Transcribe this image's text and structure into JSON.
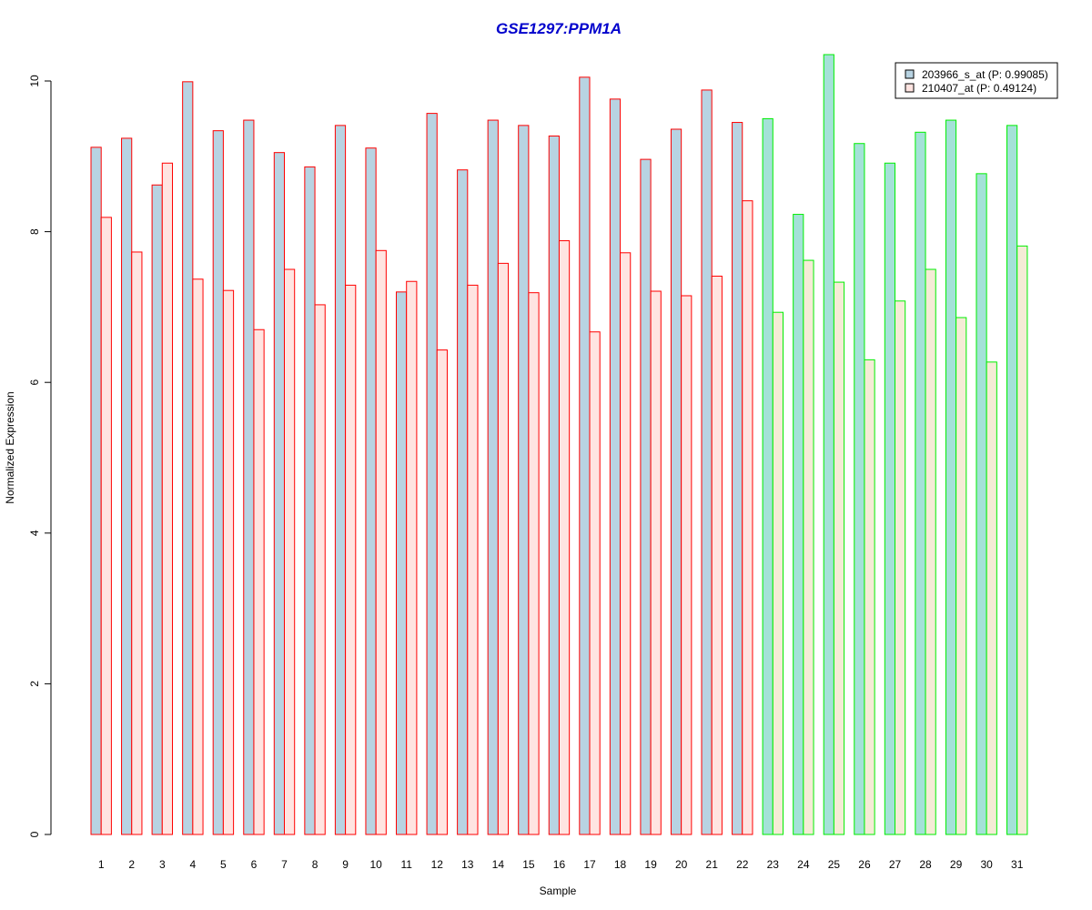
{
  "chart_data": {
    "type": "bar",
    "title": "GSE1297:PPM1A",
    "xlabel": "Sample",
    "ylabel": "Normalized Expression",
    "ylim": [
      0,
      10.5
    ],
    "yticks": [
      0,
      2,
      4,
      6,
      8,
      10
    ],
    "categories": [
      "1",
      "2",
      "3",
      "4",
      "5",
      "6",
      "7",
      "8",
      "9",
      "10",
      "11",
      "12",
      "13",
      "14",
      "15",
      "16",
      "17",
      "18",
      "19",
      "20",
      "21",
      "22",
      "23",
      "24",
      "25",
      "26",
      "27",
      "28",
      "29",
      "30",
      "31"
    ],
    "series": [
      {
        "name": "203966_s_at (P: 0.99085)",
        "values": [
          9.12,
          9.24,
          8.62,
          9.99,
          9.34,
          9.48,
          9.05,
          8.86,
          9.41,
          9.11,
          7.2,
          9.57,
          8.82,
          9.48,
          9.41,
          9.27,
          10.05,
          9.76,
          8.96,
          9.36,
          9.88,
          9.45,
          9.5,
          8.23,
          10.35,
          9.17,
          8.91,
          9.32,
          9.48,
          8.77,
          9.41
        ]
      },
      {
        "name": "210407_at (P: 0.49124)",
        "values": [
          8.19,
          7.73,
          8.91,
          7.37,
          7.22,
          6.7,
          7.5,
          7.03,
          7.29,
          7.75,
          7.34,
          6.43,
          7.29,
          7.58,
          7.19,
          7.88,
          6.67,
          7.72,
          7.21,
          7.15,
          7.41,
          8.41,
          6.93,
          7.62,
          7.33,
          6.3,
          7.08,
          7.5,
          6.86,
          6.27,
          7.81
        ]
      }
    ],
    "group_split_index": 22,
    "colors": {
      "group1_border": "#FF0000",
      "group2_border": "#00EE00",
      "series1_fill_group1": "#B8D3E2",
      "series2_fill_group1": "#FFE4E1",
      "series1_fill_group2": "#A4E1D8",
      "series2_fill_group2": "#F5EBD6",
      "title": "#0000CC"
    },
    "legend_position": "top-right",
    "grid": false
  }
}
